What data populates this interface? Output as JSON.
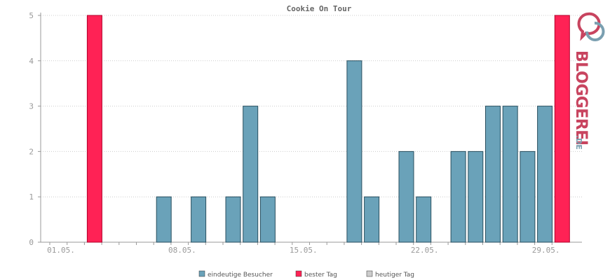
{
  "chart_data": {
    "type": "bar",
    "title": "Cookie On Tour",
    "xlabel": "",
    "ylabel": "",
    "ylim": [
      0,
      5
    ],
    "yticks": [
      0,
      1,
      2,
      3,
      4,
      5
    ],
    "grid": true,
    "legend_position": "bottom-center",
    "x": [
      "01.05.",
      "02.05.",
      "03.05.",
      "04.05.",
      "05.05.",
      "06.05.",
      "07.05.",
      "08.05.",
      "09.05.",
      "10.05.",
      "11.05.",
      "12.05.",
      "13.05.",
      "14.05.",
      "15.05.",
      "16.05.",
      "17.05.",
      "18.05.",
      "19.05.",
      "20.05.",
      "21.05.",
      "22.05.",
      "23.05.",
      "24.05.",
      "25.05.",
      "26.05.",
      "27.05.",
      "28.05.",
      "29.05.",
      "30.05."
    ],
    "xtick_labels": [
      "01.05.",
      "08.05.",
      "15.05.",
      "22.05.",
      "29.05."
    ],
    "series": [
      {
        "name": "eindeutige Besucher",
        "color": "#6aa2b9",
        "values": [
          0,
          0,
          5,
          0,
          0,
          0,
          1,
          0,
          1,
          0,
          1,
          3,
          1,
          0,
          0,
          0,
          0,
          4,
          1,
          0,
          2,
          1,
          0,
          2,
          2,
          3,
          3,
          2,
          3,
          5
        ]
      }
    ],
    "best_day_indices": [
      2,
      29
    ],
    "legend": [
      {
        "label": "eindeutige Besucher",
        "color": "#6aa2b9"
      },
      {
        "label": "bester Tag",
        "color": "#ff2255"
      },
      {
        "label": "heutiger Tag",
        "color": "#cccccc"
      }
    ]
  },
  "logo": {
    "text_main": "BLOGGEREI",
    "text_suffix": ".DE",
    "icon": "speech-bubbles-icon",
    "colors": {
      "pink": "#c8445f",
      "blue": "#7a9fb0",
      "gray": "#a8a8a8"
    }
  }
}
